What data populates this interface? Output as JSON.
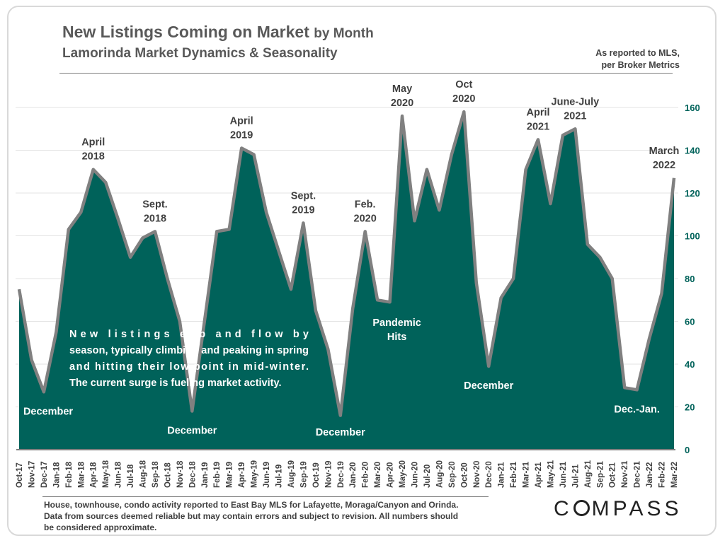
{
  "header": {
    "title_main": "New Listings Coming on Market",
    "title_suffix": "by Month",
    "subtitle": "Lamorinda Market Dynamics & Seasonality",
    "source_note_line1": "As reported to MLS,",
    "source_note_line2": "per Broker Metrics"
  },
  "chart_data": {
    "type": "area",
    "title": "New Listings Coming on Market by Month",
    "subtitle": "Lamorinda Market Dynamics & Seasonality",
    "xlabel": "",
    "ylabel": "",
    "ylim": [
      0,
      160
    ],
    "yticks": [
      0,
      20,
      40,
      60,
      80,
      100,
      120,
      140,
      160
    ],
    "y_axis_side": "right",
    "grid": true,
    "fill_color": "#00625a",
    "line_color": "#808080",
    "categories": [
      "Oct-17",
      "Nov-17",
      "Dec-17",
      "Jan-18",
      "Feb-18",
      "Mar-18",
      "Apr-18",
      "May-18",
      "Jun-18",
      "Jul-18",
      "Aug-18",
      "Sep-18",
      "Oct-18",
      "Nov-18",
      "Dec-18",
      "Jan-19",
      "Feb-19",
      "Mar-19",
      "Apr-19",
      "May-19",
      "Jun-19",
      "Jul-19",
      "Aug-19",
      "Sep-19",
      "Oct-19",
      "Nov-19",
      "Dec-19",
      "Jan-20",
      "Feb-20",
      "Mar-20",
      "Apr-20",
      "May-20",
      "Jun-20",
      "Jul-20",
      "Aug-20",
      "Sep-20",
      "Oct-20",
      "Nov-20",
      "Dec-20",
      "Jan-21",
      "Feb-21",
      "Mar-21",
      "Apr-21",
      "May-21",
      "Jun-21",
      "Jul-21",
      "Aug-21",
      "Sep-21",
      "Oct-21",
      "Nov-21",
      "Dec-21",
      "Jan-22",
      "Feb-22",
      "Mar-22"
    ],
    "values": [
      75,
      42,
      27,
      55,
      103,
      111,
      131,
      125,
      108,
      90,
      99,
      102,
      80,
      60,
      18,
      60,
      102,
      103,
      141,
      138,
      111,
      93,
      75,
      106,
      65,
      47,
      16,
      66,
      102,
      70,
      69,
      156,
      107,
      131,
      112,
      138,
      158,
      78,
      39,
      71,
      80,
      131,
      145,
      115,
      147,
      150,
      96,
      90,
      80,
      29,
      28,
      52,
      73,
      127
    ],
    "annotations": [
      {
        "label": "April\n2018",
        "category": "Apr-18",
        "position": "above"
      },
      {
        "label": "Sept.\n2018",
        "category": "Sep-18",
        "position": "above"
      },
      {
        "label": "December",
        "category": "Dec-17",
        "position": "below"
      },
      {
        "label": "December",
        "category": "Dec-18",
        "position": "below"
      },
      {
        "label": "April\n2019",
        "category": "Apr-19",
        "position": "above"
      },
      {
        "label": "Sept.\n2019",
        "category": "Sep-19",
        "position": "above"
      },
      {
        "label": "December",
        "category": "Dec-19",
        "position": "below"
      },
      {
        "label": "Feb.\n2020",
        "category": "Feb-20",
        "position": "above"
      },
      {
        "label": "Pandemic\nHits",
        "category": "Apr-20",
        "position": "inside"
      },
      {
        "label": "May\n2020",
        "category": "May-20",
        "position": "above"
      },
      {
        "label": "Oct\n2020",
        "category": "Oct-20",
        "position": "above"
      },
      {
        "label": "December",
        "category": "Dec-20",
        "position": "below"
      },
      {
        "label": "April\n2021",
        "category": "Apr-21",
        "position": "above"
      },
      {
        "label": "June-July\n2021",
        "category": "Jul-21",
        "position": "above"
      },
      {
        "label": "Dec.-Jan.",
        "category": "Dec-21",
        "position": "below"
      },
      {
        "label": "March\n2022",
        "category": "Mar-22",
        "position": "above"
      }
    ],
    "callout": "New listings ebb and flow by season, typically climbing and peaking in spring and hitting their low point in mid-winter.  The current surge is fueling market activity."
  },
  "footer": {
    "footnote": "House, townhouse, condo activity reported to East Bay MLS for Lafayette, Moraga/Canyon and Orinda. Data from sources deemed reliable but may contain errors and subject to revision. All numbers should be considered approximate.",
    "logo_left": "C",
    "logo_right": "MPASS",
    "logo_full": "COMPASS"
  }
}
